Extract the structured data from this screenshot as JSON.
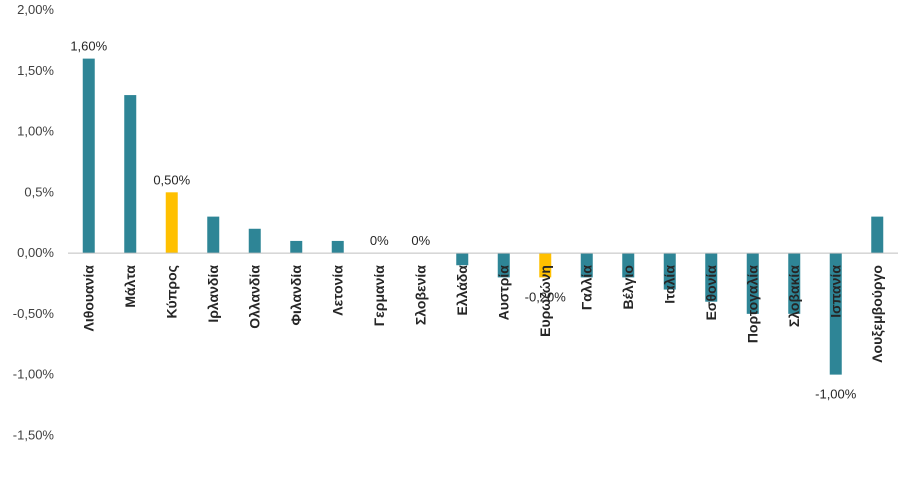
{
  "chart_data": {
    "type": "bar",
    "title": "",
    "xlabel": "",
    "ylabel": "",
    "ylim": [
      -1.9,
      2.0
    ],
    "yticks": [
      2.0,
      1.5,
      1.0,
      0.5,
      0.0,
      -0.5,
      -1.0,
      -1.5
    ],
    "ytick_labels": [
      "2,00%",
      "1,50%",
      "1,00%",
      "0,5%",
      "0,00%",
      "-0,50%",
      "-1,00%",
      "-1,50%"
    ],
    "grid": false,
    "legend": "none",
    "categories": [
      "Λιθουανία",
      "Μάλτα",
      "Κύπρος",
      "Ιρλανδία",
      "Ολλανδία",
      "Φιλανδία",
      "Λετονία",
      "Γερμανία",
      "Σλοβενία",
      "Ελλάδα",
      "Αυστρία",
      "Ευρωζώνη",
      "Γαλλία",
      "Βέλγιο",
      "Ιταλία",
      "Εσθονία",
      "Πορτογαλία",
      "Σλοβακία",
      "Ισπανία",
      "Λουξεμβούργο"
    ],
    "values": [
      1.6,
      1.3,
      0.5,
      0.3,
      0.2,
      0.1,
      0.1,
      0.0,
      0.0,
      -0.1,
      -0.2,
      -0.2,
      -0.2,
      -0.2,
      -0.3,
      -0.4,
      -0.5,
      -0.5,
      -1.0,
      0.3
    ],
    "highlight": [
      "Κύπρος",
      "Ευρωζώνη"
    ],
    "data_labels": [
      {
        "category": "Λιθουανία",
        "text": "1,60%"
      },
      {
        "category": "Κύπρος",
        "text": "0,50%"
      },
      {
        "category": "Γερμανία",
        "text": "0%"
      },
      {
        "category": "Σλοβενία",
        "text": "0%"
      },
      {
        "category": "Ευρωζώνη",
        "text": "-0,20%"
      },
      {
        "category": "Ισπανία",
        "text": "-1,00%"
      }
    ],
    "colors": {
      "bar": "#2e8596",
      "highlight": "#ffc000",
      "axis": "#bfbfbf"
    }
  }
}
